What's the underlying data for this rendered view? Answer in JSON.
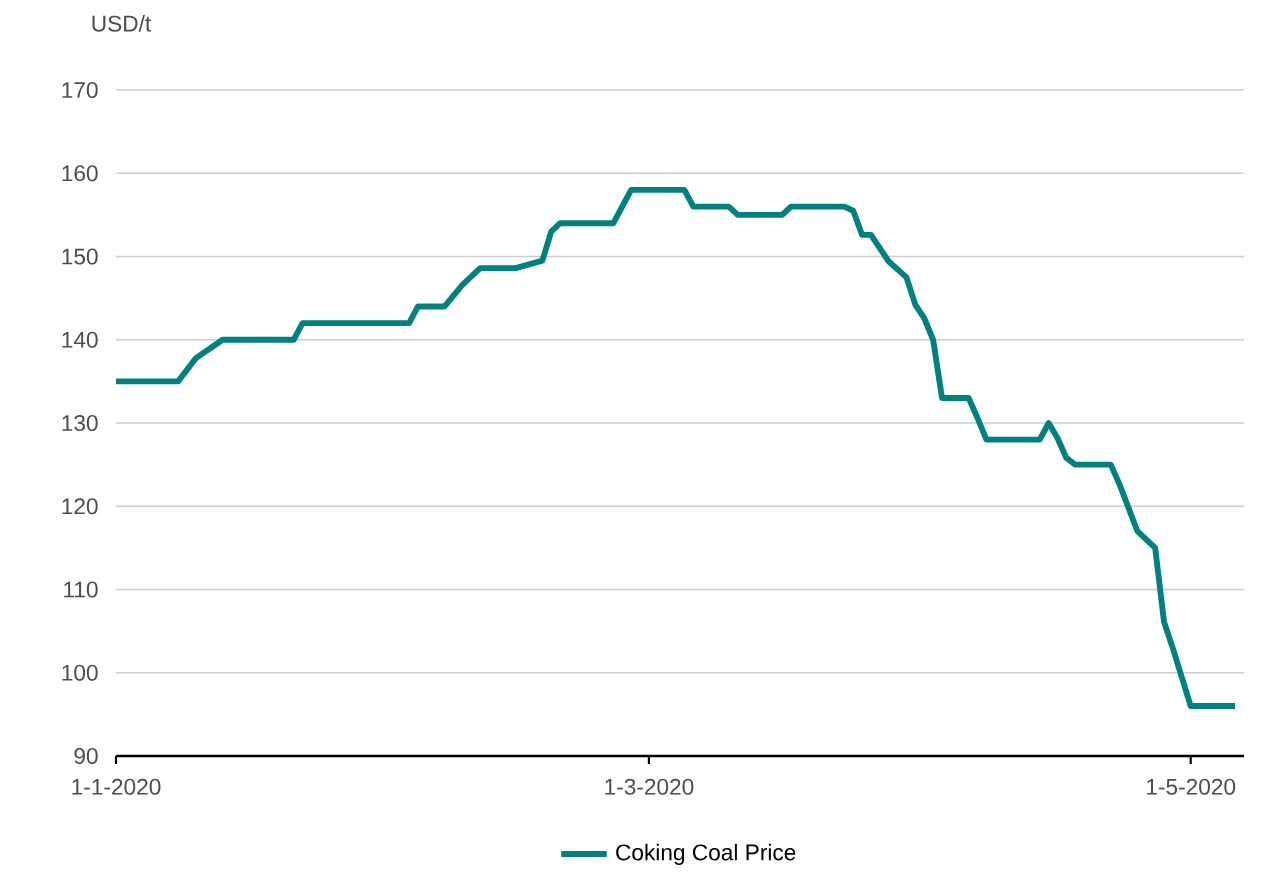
{
  "chart_data": {
    "type": "line",
    "ylabel": "USD/t",
    "x": [
      "2020-01-01",
      "2020-01-08",
      "2020-01-10",
      "2020-01-13",
      "2020-01-21",
      "2020-01-22",
      "2020-02-03",
      "2020-02-04",
      "2020-02-07",
      "2020-02-09",
      "2020-02-11",
      "2020-02-15",
      "2020-02-18",
      "2020-02-19",
      "2020-02-20",
      "2020-02-26",
      "2020-02-28",
      "2020-03-05",
      "2020-03-06",
      "2020-03-10",
      "2020-03-11",
      "2020-03-16",
      "2020-03-17",
      "2020-03-23",
      "2020-03-24",
      "2020-03-25",
      "2020-03-26",
      "2020-03-28",
      "2020-03-30",
      "2020-03-31",
      "2020-04-01",
      "2020-04-02",
      "2020-04-03",
      "2020-04-06",
      "2020-04-07",
      "2020-04-08",
      "2020-04-14",
      "2020-04-15",
      "2020-04-16",
      "2020-04-17",
      "2020-04-18",
      "2020-04-22",
      "2020-04-23",
      "2020-04-25",
      "2020-04-27",
      "2020-04-28",
      "2020-04-29",
      "2020-05-01",
      "2020-05-06"
    ],
    "series": [
      {
        "name": "Coking Coal Price",
        "color": "#00807f",
        "values": [
          135,
          135,
          137.8,
          140,
          140,
          142,
          142,
          144,
          144,
          146.6,
          148.6,
          148.6,
          149.5,
          153,
          154,
          154,
          158,
          158,
          156,
          156,
          155,
          155,
          156,
          156,
          155.5,
          152.6,
          152.6,
          149.4,
          147.5,
          144.2,
          142.6,
          140,
          133,
          133,
          130.6,
          128,
          128,
          130,
          128.2,
          125.8,
          125,
          125,
          122.6,
          117,
          115,
          106.1,
          102.9,
          96,
          96
        ]
      }
    ],
    "xlim": [
      "2020-01-01",
      "2020-05-07"
    ],
    "xticks": [
      {
        "value": "2020-01-01",
        "label": "1-1-2020"
      },
      {
        "value": "2020-03-01",
        "label": "1-3-2020"
      },
      {
        "value": "2020-05-01",
        "label": "1-5-2020"
      }
    ],
    "ylim": [
      90,
      170
    ],
    "yticks": [
      90,
      100,
      110,
      120,
      130,
      140,
      150,
      160,
      170
    ],
    "grid": "y",
    "legend": "bottom",
    "marker": "none",
    "line_style": "solid"
  }
}
